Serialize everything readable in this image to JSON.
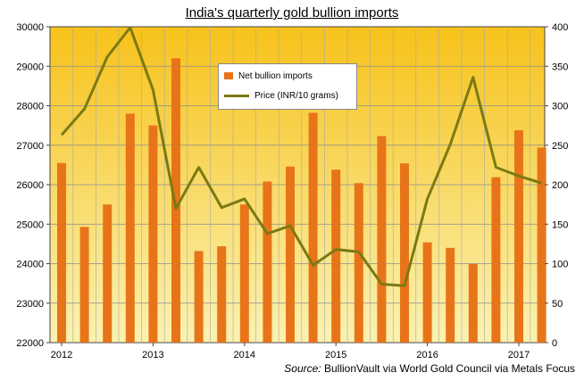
{
  "chart_data": {
    "type": "bar+line",
    "title": "India's quarterly  gold bullion imports",
    "source_prefix": "Source:",
    "source_text": "BullionVault via World Gold Council via Metals Focus",
    "x_tick_labels": [
      "2012",
      "2013",
      "2014",
      "2015",
      "2016",
      "2017"
    ],
    "y_left": {
      "range": [
        22000,
        30000
      ],
      "ticks": [
        22000,
        23000,
        24000,
        25000,
        26000,
        27000,
        28000,
        29000,
        30000
      ]
    },
    "y_right": {
      "range": [
        0,
        400
      ],
      "ticks": [
        0,
        50,
        100,
        150,
        200,
        250,
        300,
        350,
        400
      ]
    },
    "quarters": 22,
    "series": [
      {
        "name": "Net bullion imports",
        "type": "bar",
        "axis": "left",
        "color": "#e8741a",
        "values": [
          26550,
          24930,
          25500,
          27800,
          27500,
          29200,
          24320,
          24440,
          25500,
          26080,
          26460,
          27820,
          26380,
          26040,
          27230,
          26540,
          24540,
          24400,
          23990,
          26190,
          27380,
          26940
        ]
      },
      {
        "name": "Price (INR/10 grams)",
        "type": "line",
        "axis": "right",
        "color": "#7b7a12",
        "values": [
          263,
          296,
          362,
          399,
          320,
          170,
          222,
          171,
          182,
          138,
          148,
          98,
          118,
          115,
          74,
          72,
          182,
          251,
          336,
          222,
          211,
          202
        ]
      }
    ],
    "grid": true,
    "legend_position": "top-center"
  }
}
